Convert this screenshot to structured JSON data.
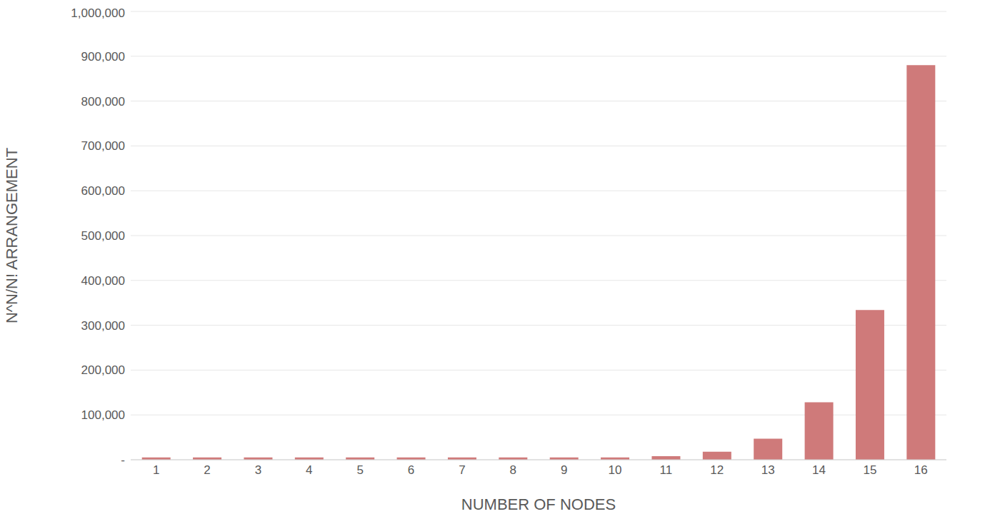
{
  "chart_data": {
    "type": "bar",
    "x_label": "NUMBER OF NODES",
    "y_label": "N^N/N! ARRANGEMENT",
    "categories": [
      1,
      2,
      3,
      4,
      5,
      6,
      7,
      8,
      9,
      10,
      11,
      12,
      13,
      14,
      15,
      16
    ],
    "values": [
      5000,
      5000,
      5000,
      5000,
      5000,
      5000,
      5000,
      5000,
      5000,
      5000,
      8000,
      18000,
      47000,
      128000,
      334000,
      880000
    ],
    "color": "#cf7a7a",
    "ylim": [
      0,
      1000000
    ],
    "yticks": [
      {
        "value": 0,
        "label": "-"
      },
      {
        "value": 100000,
        "label": "100,000"
      },
      {
        "value": 200000,
        "label": "200,000"
      },
      {
        "value": 300000,
        "label": "300,000"
      },
      {
        "value": 400000,
        "label": "400,000"
      },
      {
        "value": 500000,
        "label": "500,000"
      },
      {
        "value": 600000,
        "label": "600,000"
      },
      {
        "value": 700000,
        "label": "700,000"
      },
      {
        "value": 800000,
        "label": "800,000"
      },
      {
        "value": 900000,
        "label": "900,000"
      },
      {
        "value": 1000000,
        "label": "1,000,000"
      }
    ],
    "grid": true
  }
}
